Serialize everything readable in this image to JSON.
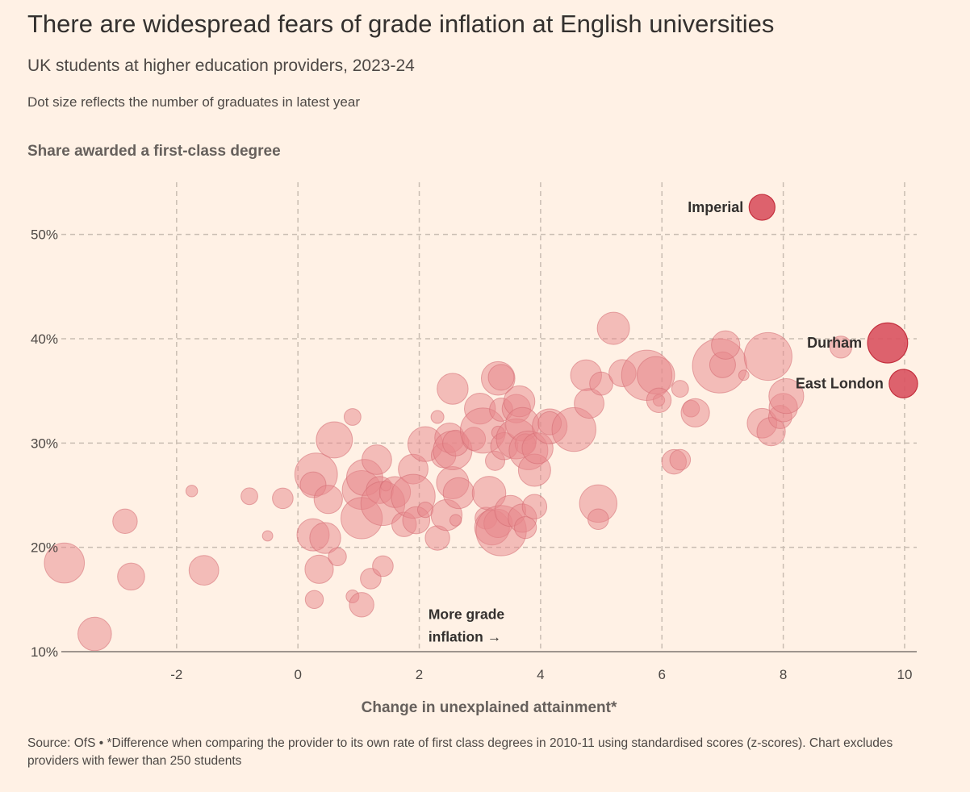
{
  "chart_data": {
    "type": "scatter",
    "title": "There are widespread fears of grade inflation at English universities",
    "subtitle": "UK students at higher education providers, 2023-24",
    "note": "Dot size reflects the number of graduates in latest year",
    "ylabel": "Share awarded a first-class degree",
    "xlabel": "Change in unexplained attainment*",
    "xlim": [
      -3.9,
      10.2
    ],
    "ylim": [
      10,
      55
    ],
    "x_ticks": [
      -2,
      0,
      2,
      4,
      6,
      8,
      10
    ],
    "x_tick_labels": [
      "-2",
      "0",
      "2",
      "4",
      "6",
      "8",
      "10"
    ],
    "y_ticks": [
      10,
      20,
      30,
      40,
      50
    ],
    "y_tick_labels": [
      "10%",
      "20%",
      "30%",
      "40%",
      "50%"
    ],
    "annotation": {
      "line1": "More grade",
      "line2": "inflation",
      "arrow": "→",
      "x": 2.15,
      "y": 12.2
    },
    "colors": {
      "dot": "#e8878c",
      "dot_stroke": "#d46b72",
      "highlight": "#d9525f",
      "highlight_stroke": "#c4303e",
      "grid": "#c9bdb2",
      "axis": "#9e958e"
    },
    "highlighted": [
      {
        "name": "Imperial",
        "x": 7.65,
        "y": 52.6,
        "size": 1.0
      },
      {
        "name": "Durham",
        "x": 9.72,
        "y": 39.6,
        "size": 1.55
      },
      {
        "name": "East London",
        "x": 9.98,
        "y": 35.7,
        "size": 1.1
      }
    ],
    "points": [
      {
        "x": -3.85,
        "y": 18.5,
        "size": 1.55
      },
      {
        "x": -3.35,
        "y": 11.7,
        "size": 1.3
      },
      {
        "x": -2.85,
        "y": 22.5,
        "size": 0.95
      },
      {
        "x": -2.75,
        "y": 17.2,
        "size": 1.05
      },
      {
        "x": -1.75,
        "y": 25.4,
        "size": 0.45
      },
      {
        "x": -1.55,
        "y": 17.8,
        "size": 1.15
      },
      {
        "x": -0.8,
        "y": 24.9,
        "size": 0.65
      },
      {
        "x": -0.5,
        "y": 21.1,
        "size": 0.4
      },
      {
        "x": -0.25,
        "y": 24.7,
        "size": 0.8
      },
      {
        "x": 0.3,
        "y": 27.0,
        "size": 1.65
      },
      {
        "x": 0.25,
        "y": 21.2,
        "size": 1.25
      },
      {
        "x": 0.25,
        "y": 26.0,
        "size": 1.0
      },
      {
        "x": 0.35,
        "y": 17.9,
        "size": 1.1
      },
      {
        "x": 0.45,
        "y": 20.9,
        "size": 1.2
      },
      {
        "x": 0.5,
        "y": 24.6,
        "size": 1.1
      },
      {
        "x": 0.6,
        "y": 30.3,
        "size": 1.4
      },
      {
        "x": 0.65,
        "y": 19.1,
        "size": 0.7
      },
      {
        "x": 0.9,
        "y": 32.5,
        "size": 0.65
      },
      {
        "x": 0.27,
        "y": 15.0,
        "size": 0.7
      },
      {
        "x": 0.9,
        "y": 15.3,
        "size": 0.5
      },
      {
        "x": 1.05,
        "y": 14.5,
        "size": 0.95
      },
      {
        "x": 1.05,
        "y": 25.5,
        "size": 1.5
      },
      {
        "x": 1.05,
        "y": 22.8,
        "size": 1.6
      },
      {
        "x": 1.1,
        "y": 26.7,
        "size": 1.4
      },
      {
        "x": 1.2,
        "y": 17.0,
        "size": 0.8
      },
      {
        "x": 1.3,
        "y": 28.4,
        "size": 1.15
      },
      {
        "x": 1.35,
        "y": 25.5,
        "size": 1.05
      },
      {
        "x": 1.4,
        "y": 24.2,
        "size": 1.7
      },
      {
        "x": 1.45,
        "y": 25.9,
        "size": 0.4
      },
      {
        "x": 1.4,
        "y": 18.2,
        "size": 0.8
      },
      {
        "x": 1.6,
        "y": 25.3,
        "size": 1.2
      },
      {
        "x": 1.75,
        "y": 22.2,
        "size": 0.95
      },
      {
        "x": 1.9,
        "y": 27.5,
        "size": 1.15
      },
      {
        "x": 1.9,
        "y": 24.9,
        "size": 1.7
      },
      {
        "x": 1.95,
        "y": 22.6,
        "size": 1.05
      },
      {
        "x": 2.1,
        "y": 23.6,
        "size": 0.6
      },
      {
        "x": 2.1,
        "y": 29.9,
        "size": 1.35
      },
      {
        "x": 2.3,
        "y": 20.9,
        "size": 0.95
      },
      {
        "x": 2.3,
        "y": 32.5,
        "size": 0.5
      },
      {
        "x": 2.4,
        "y": 28.8,
        "size": 0.95
      },
      {
        "x": 2.45,
        "y": 23.1,
        "size": 1.2
      },
      {
        "x": 2.5,
        "y": 30.5,
        "size": 1.15
      },
      {
        "x": 2.55,
        "y": 26.2,
        "size": 1.25
      },
      {
        "x": 2.55,
        "y": 35.2,
        "size": 1.2
      },
      {
        "x": 2.55,
        "y": 29.3,
        "size": 1.5
      },
      {
        "x": 2.6,
        "y": 22.6,
        "size": 0.45
      },
      {
        "x": 2.6,
        "y": 30.0,
        "size": 1.0
      },
      {
        "x": 2.65,
        "y": 25.2,
        "size": 1.2
      },
      {
        "x": 2.9,
        "y": 30.4,
        "size": 0.9
      },
      {
        "x": 3.0,
        "y": 33.3,
        "size": 1.2
      },
      {
        "x": 3.05,
        "y": 31.2,
        "size": 1.75
      },
      {
        "x": 3.1,
        "y": 22.8,
        "size": 0.85
      },
      {
        "x": 3.15,
        "y": 25.2,
        "size": 1.3
      },
      {
        "x": 3.2,
        "y": 21.9,
        "size": 1.35
      },
      {
        "x": 3.3,
        "y": 36.2,
        "size": 1.3
      },
      {
        "x": 3.25,
        "y": 28.3,
        "size": 0.75
      },
      {
        "x": 3.3,
        "y": 31.0,
        "size": 0.5
      },
      {
        "x": 3.3,
        "y": 22.3,
        "size": 1.1
      },
      {
        "x": 3.35,
        "y": 21.6,
        "size": 1.95
      },
      {
        "x": 3.4,
        "y": 29.7,
        "size": 1.05
      },
      {
        "x": 3.35,
        "y": 33.2,
        "size": 0.9
      },
      {
        "x": 3.35,
        "y": 36.3,
        "size": 1.0
      },
      {
        "x": 3.5,
        "y": 23.5,
        "size": 1.2
      },
      {
        "x": 3.6,
        "y": 33.3,
        "size": 1.1
      },
      {
        "x": 3.6,
        "y": 30.4,
        "size": 1.55
      },
      {
        "x": 3.65,
        "y": 34.0,
        "size": 1.2
      },
      {
        "x": 3.7,
        "y": 22.8,
        "size": 1.1
      },
      {
        "x": 3.7,
        "y": 31.8,
        "size": 1.3
      },
      {
        "x": 3.75,
        "y": 29.9,
        "size": 0.8
      },
      {
        "x": 3.75,
        "y": 21.9,
        "size": 0.85
      },
      {
        "x": 3.8,
        "y": 29.3,
        "size": 1.5
      },
      {
        "x": 3.9,
        "y": 27.4,
        "size": 1.25
      },
      {
        "x": 3.9,
        "y": 23.9,
        "size": 0.95
      },
      {
        "x": 3.95,
        "y": 29.5,
        "size": 1.2
      },
      {
        "x": 4.15,
        "y": 31.6,
        "size": 1.35
      },
      {
        "x": 4.15,
        "y": 31.9,
        "size": 0.9
      },
      {
        "x": 4.55,
        "y": 31.3,
        "size": 1.7
      },
      {
        "x": 4.75,
        "y": 36.5,
        "size": 1.2
      },
      {
        "x": 4.8,
        "y": 33.8,
        "size": 1.15
      },
      {
        "x": 4.95,
        "y": 24.2,
        "size": 1.45
      },
      {
        "x": 4.95,
        "y": 22.7,
        "size": 0.8
      },
      {
        "x": 5.0,
        "y": 35.7,
        "size": 0.9
      },
      {
        "x": 5.2,
        "y": 41.0,
        "size": 1.25
      },
      {
        "x": 5.35,
        "y": 36.7,
        "size": 1.05
      },
      {
        "x": 5.75,
        "y": 36.5,
        "size": 1.95
      },
      {
        "x": 5.9,
        "y": 36.5,
        "size": 1.45
      },
      {
        "x": 5.95,
        "y": 34.1,
        "size": 0.45
      },
      {
        "x": 5.95,
        "y": 34.1,
        "size": 0.95
      },
      {
        "x": 6.2,
        "y": 28.2,
        "size": 0.95
      },
      {
        "x": 6.3,
        "y": 28.4,
        "size": 0.8
      },
      {
        "x": 6.3,
        "y": 35.2,
        "size": 0.65
      },
      {
        "x": 6.48,
        "y": 33.3,
        "size": 0.65
      },
      {
        "x": 6.55,
        "y": 32.9,
        "size": 1.1
      },
      {
        "x": 6.95,
        "y": 37.4,
        "size": 2.1
      },
      {
        "x": 7.0,
        "y": 37.5,
        "size": 1.0
      },
      {
        "x": 7.05,
        "y": 39.4,
        "size": 1.1
      },
      {
        "x": 7.35,
        "y": 36.5,
        "size": 0.4
      },
      {
        "x": 7.65,
        "y": 31.9,
        "size": 1.15
      },
      {
        "x": 7.75,
        "y": 38.3,
        "size": 1.85
      },
      {
        "x": 7.8,
        "y": 31.1,
        "size": 1.1
      },
      {
        "x": 7.95,
        "y": 32.5,
        "size": 0.9
      },
      {
        "x": 8.0,
        "y": 33.4,
        "size": 1.1
      },
      {
        "x": 8.05,
        "y": 34.5,
        "size": 1.35
      },
      {
        "x": 8.95,
        "y": 39.2,
        "size": 0.85
      }
    ]
  },
  "source": "Source: OfS • *Difference when comparing the provider to its own rate of first class degrees in 2010-11 using standardised scores (z-scores). Chart excludes providers with fewer than 250 students"
}
